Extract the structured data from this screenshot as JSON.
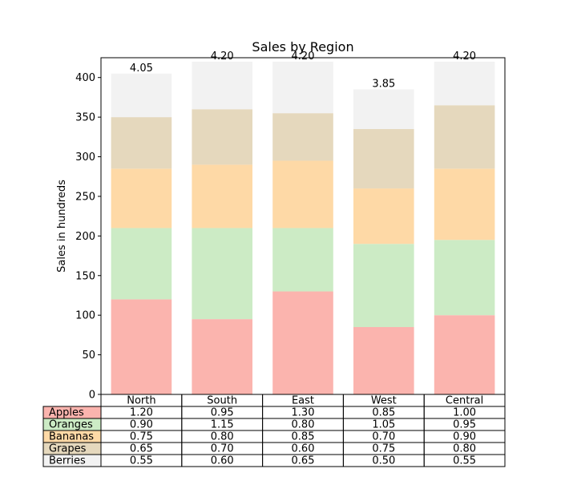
{
  "chart_data": {
    "type": "bar",
    "stacked": true,
    "title": "Sales by Region",
    "xlabel": "",
    "ylabel": "Sales in hundreds",
    "ylim": [
      0,
      425
    ],
    "yticks": [
      0,
      50,
      100,
      150,
      200,
      250,
      300,
      350,
      400
    ],
    "categories": [
      "North",
      "South",
      "East",
      "West",
      "Central"
    ],
    "totals": [
      "4.05",
      "4.20",
      "4.20",
      "3.85",
      "4.20"
    ],
    "series": [
      {
        "name": "Apples",
        "color": "#fbb4ae",
        "values": [
          1.2,
          0.95,
          1.3,
          0.85,
          1.0
        ],
        "labels": [
          "1.20",
          "0.95",
          "1.30",
          "0.85",
          "1.00"
        ]
      },
      {
        "name": "Oranges",
        "color": "#ccebc5",
        "values": [
          0.9,
          1.15,
          0.8,
          1.05,
          0.95
        ],
        "labels": [
          "0.90",
          "1.15",
          "0.80",
          "1.05",
          "0.95"
        ]
      },
      {
        "name": "Bananas",
        "color": "#fed9a6",
        "values": [
          0.75,
          0.8,
          0.85,
          0.7,
          0.9
        ],
        "labels": [
          "0.75",
          "0.80",
          "0.85",
          "0.70",
          "0.90"
        ]
      },
      {
        "name": "Grapes",
        "color": "#e5d8bd",
        "values": [
          0.65,
          0.7,
          0.6,
          0.75,
          0.8
        ],
        "labels": [
          "0.65",
          "0.70",
          "0.60",
          "0.75",
          "0.80"
        ]
      },
      {
        "name": "Berries",
        "color": "#f2f2f2",
        "values": [
          0.55,
          0.6,
          0.65,
          0.5,
          0.55
        ],
        "labels": [
          "0.55",
          "0.60",
          "0.65",
          "0.50",
          "0.55"
        ]
      }
    ],
    "grid": false,
    "legend": "table-below"
  }
}
